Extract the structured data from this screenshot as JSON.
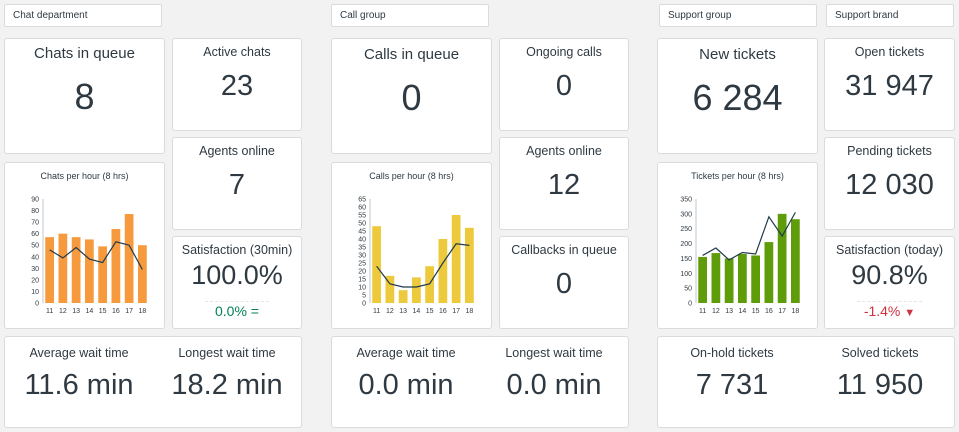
{
  "filters": {
    "chat_department": "Chat department",
    "call_group": "Call group",
    "support_group": "Support group",
    "support_brand": "Support brand"
  },
  "chat": {
    "queue_label": "Chats in queue",
    "queue_value": "8",
    "active_label": "Active chats",
    "active_value": "23",
    "agents_label": "Agents online",
    "agents_value": "7",
    "satisfaction_label": "Satisfaction (30min)",
    "satisfaction_value": "100.0%",
    "satisfaction_change": "0.0% =",
    "avg_wait_label": "Average wait time",
    "avg_wait_value": "11.6 min",
    "longest_wait_label": "Longest wait time",
    "longest_wait_value": "18.2 min"
  },
  "calls": {
    "queue_label": "Calls in queue",
    "queue_value": "0",
    "ongoing_label": "Ongoing calls",
    "ongoing_value": "0",
    "agents_label": "Agents online",
    "agents_value": "12",
    "callbacks_label": "Callbacks in queue",
    "callbacks_value": "0",
    "avg_wait_label": "Average wait time",
    "avg_wait_value": "0.0 min",
    "longest_wait_label": "Longest wait time",
    "longest_wait_value": "0.0 min"
  },
  "tickets": {
    "new_label": "New tickets",
    "new_value": "6 284",
    "open_label": "Open tickets",
    "open_value": "31 947",
    "pending_label": "Pending tickets",
    "pending_value": "12 030",
    "satisfaction_label": "Satisfaction (today)",
    "satisfaction_value": "90.8%",
    "satisfaction_change": "-1.4%",
    "change_icon": "down-triangle-icon",
    "onhold_label": "On-hold tickets",
    "onhold_value": "7 731",
    "solved_label": "Solved tickets",
    "solved_value": "11 950"
  },
  "colors": {
    "chat": "#f79a3e",
    "calls": "#edc93c",
    "tickets": "#5e9c09",
    "line": "#1f3a4d",
    "positive": "#038153",
    "negative": "#cc3340"
  },
  "chart_data": [
    {
      "type": "bar",
      "title": "Chats per hour (8 hrs)",
      "categories": [
        "11",
        "12",
        "13",
        "14",
        "15",
        "16",
        "17",
        "18"
      ],
      "series": [
        {
          "kind": "bar",
          "values": [
            57,
            60,
            57,
            55,
            49,
            64,
            77,
            50
          ]
        },
        {
          "kind": "line",
          "values": [
            46,
            39,
            48,
            38,
            35,
            53,
            50,
            29
          ]
        }
      ],
      "ylim": [
        0,
        90
      ],
      "yticks": [
        0,
        10,
        20,
        30,
        40,
        50,
        60,
        70,
        80,
        90
      ]
    },
    {
      "type": "bar",
      "title": "Calls per hour (8 hrs)",
      "categories": [
        "11",
        "12",
        "13",
        "14",
        "15",
        "16",
        "17",
        "18"
      ],
      "series": [
        {
          "kind": "bar",
          "values": [
            48,
            17,
            8,
            16,
            23,
            40,
            55,
            47
          ]
        },
        {
          "kind": "line",
          "values": [
            23,
            12,
            10,
            10,
            12,
            25,
            37,
            36
          ]
        }
      ],
      "ylim": [
        0,
        65
      ],
      "yticks": [
        0,
        5,
        10,
        15,
        20,
        25,
        30,
        35,
        40,
        45,
        50,
        55,
        60,
        65
      ]
    },
    {
      "type": "bar",
      "title": "Tickets per hour (8 hrs)",
      "categories": [
        "11",
        "12",
        "13",
        "14",
        "15",
        "16",
        "17",
        "18"
      ],
      "series": [
        {
          "kind": "bar",
          "values": [
            155,
            168,
            150,
            165,
            160,
            205,
            300,
            282
          ]
        },
        {
          "kind": "line",
          "values": [
            160,
            185,
            145,
            170,
            165,
            290,
            225,
            305
          ]
        }
      ],
      "ylim": [
        0,
        350
      ],
      "yticks": [
        0,
        50,
        100,
        150,
        200,
        250,
        300,
        350
      ]
    }
  ]
}
